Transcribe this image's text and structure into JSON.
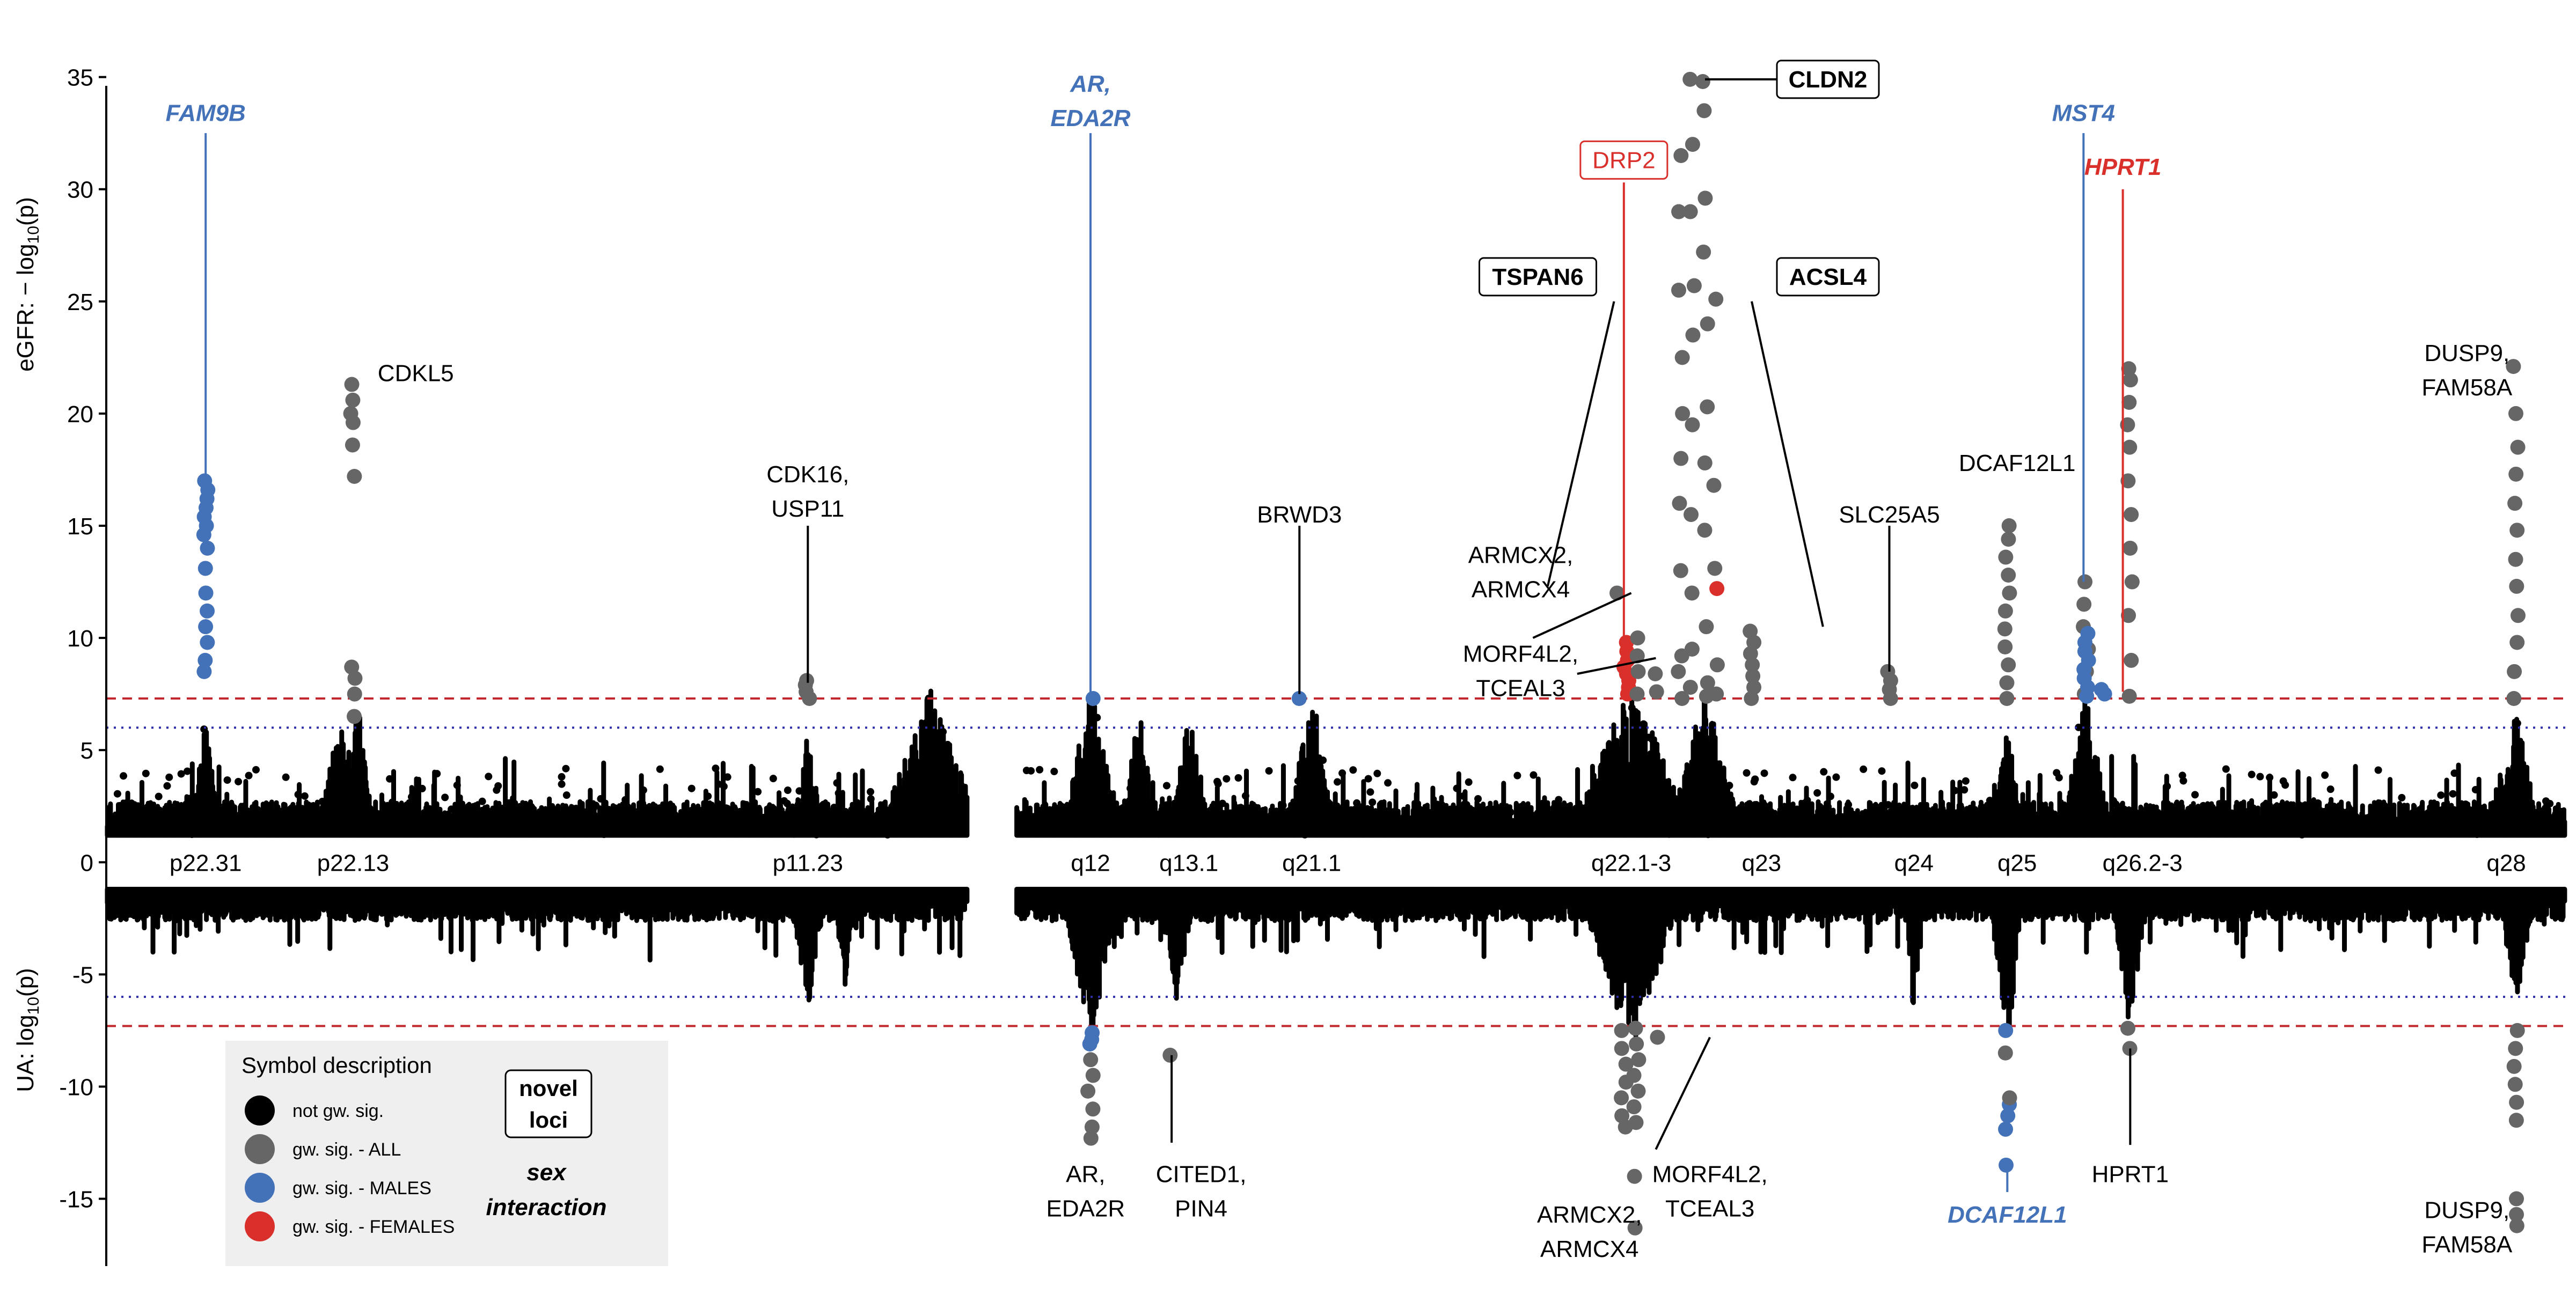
{
  "chart_data": {
    "type": "scatter",
    "title": "",
    "ylabel_top": {
      "prefix": "eGFR: − log",
      "sub": "10",
      "suffix": "(p)"
    },
    "ylabel_bottom": {
      "prefix": "UA: log",
      "sub": "10",
      "suffix": "(p)"
    },
    "ylim": [
      -18,
      37
    ],
    "yticks": [
      -15,
      -10,
      -5,
      0,
      5,
      10,
      15,
      20,
      25,
      30,
      35
    ],
    "xlim": [
      0,
      1000
    ],
    "thresholds": {
      "genome_wide": 7.3,
      "suggestive": 6.0,
      "gw_color": "#c0282d",
      "sug_color": "#2f2fa8"
    },
    "colors": {
      "not_sig": "#000000",
      "all": "#666666",
      "males": "#4472b8",
      "females": "#d9302c"
    },
    "cytobands": [
      {
        "label": "p22.31",
        "x": 40
      },
      {
        "label": "p22.13",
        "x": 100
      },
      {
        "label": "p11.23",
        "x": 285
      },
      {
        "label": "q12",
        "x": 400
      },
      {
        "label": "q13.1",
        "x": 440
      },
      {
        "label": "q21.1",
        "x": 490
      },
      {
        "label": "q22.1-3",
        "x": 620
      },
      {
        "label": "q23",
        "x": 673
      },
      {
        "label": "q24",
        "x": 735
      },
      {
        "label": "q25",
        "x": 777
      },
      {
        "label": "q26.2-3",
        "x": 828
      },
      {
        "label": "q28",
        "x": 976
      }
    ],
    "peaks": [
      {
        "x": 40,
        "side": "top",
        "class": "males",
        "ys": [
          8.5,
          9.0,
          9.8,
          10.5,
          11.2,
          12.0,
          13.1,
          14.0,
          14.6,
          15.0,
          15.4,
          15.8,
          16.2,
          16.6,
          17.0
        ]
      },
      {
        "x": 100,
        "side": "top",
        "class": "all",
        "ys": [
          6.5,
          7.5,
          8.2,
          8.7,
          17.2,
          18.6,
          19.6,
          20.0,
          20.6,
          21.3
        ]
      },
      {
        "x": 285,
        "side": "top",
        "class": "all",
        "ys": [
          7.3,
          7.6,
          7.9,
          8.1
        ]
      },
      {
        "x": 400,
        "side": "top",
        "class": "males",
        "ys": [
          7.3
        ]
      },
      {
        "x": 485,
        "side": "top",
        "class": "males",
        "ys": [
          7.3
        ]
      },
      {
        "x": 615,
        "side": "top",
        "class": "all",
        "ys": [
          12.0
        ]
      },
      {
        "x": 618,
        "side": "top",
        "class": "females",
        "ys": [
          7.5,
          7.8,
          8.1,
          8.4,
          8.7,
          9.0,
          9.4,
          9.8
        ]
      },
      {
        "x": 622,
        "side": "top",
        "class": "all",
        "ys": [
          7.5,
          8.5,
          9.2,
          10.0
        ]
      },
      {
        "x": 630,
        "side": "top",
        "class": "all",
        "ys": [
          7.6,
          8.4
        ]
      },
      {
        "x": 640,
        "side": "top",
        "class": "all",
        "ys": [
          7.3,
          8.5,
          9.2,
          13.0,
          16.0,
          18.0,
          20.0,
          22.5,
          25.5,
          29.0,
          31.5
        ]
      },
      {
        "x": 645,
        "side": "top",
        "class": "all",
        "ys": [
          7.8,
          9.5,
          12.0,
          15.5,
          19.5,
          23.5,
          25.7,
          29.0,
          32.0,
          34.9
        ]
      },
      {
        "x": 650,
        "side": "top",
        "class": "all",
        "ys": [
          7.4,
          8.0,
          10.5,
          14.8,
          17.8,
          20.3,
          24.0,
          27.2,
          29.6,
          33.5,
          34.8
        ]
      },
      {
        "x": 654,
        "side": "top",
        "class": "all",
        "ys": [
          7.5,
          8.8,
          13.1,
          16.8,
          25.1
        ]
      },
      {
        "x": 654,
        "side": "top",
        "class": "females",
        "ys": [
          12.2
        ]
      },
      {
        "x": 669,
        "side": "top",
        "class": "all",
        "ys": [
          7.3,
          7.8,
          8.3,
          8.8,
          9.3,
          9.8,
          10.3
        ]
      },
      {
        "x": 725,
        "side": "top",
        "class": "all",
        "ys": [
          7.3,
          7.7,
          8.1,
          8.5
        ]
      },
      {
        "x": 773,
        "side": "top",
        "class": "all",
        "ys": [
          7.3,
          8.0,
          8.8,
          9.6,
          10.4,
          11.2,
          12.0,
          12.8,
          13.6,
          14.4,
          15.0
        ]
      },
      {
        "x": 805,
        "side": "top",
        "class": "all",
        "ys": [
          7.5,
          8.5,
          9.5,
          10.5,
          11.5,
          12.5
        ]
      },
      {
        "x": 805,
        "side": "top",
        "class": "males",
        "ys": [
          7.4,
          7.8,
          8.2,
          8.6,
          9.0,
          9.4,
          9.8,
          10.2
        ]
      },
      {
        "x": 812,
        "side": "top",
        "class": "males",
        "ys": [
          7.5,
          7.7
        ]
      },
      {
        "x": 823,
        "side": "top",
        "class": "all",
        "ys": [
          7.4,
          9.0,
          11.0,
          12.5,
          14.0,
          15.5,
          17.0,
          18.5,
          19.5,
          20.5,
          21.5,
          22.0
        ]
      },
      {
        "x": 980,
        "side": "top",
        "class": "all",
        "ys": [
          7.3,
          8.5,
          9.8,
          11.0,
          12.3,
          13.5,
          14.8,
          16.0,
          17.3,
          18.5,
          20.0,
          22.1
        ]
      },
      {
        "x": 400,
        "side": "bottom",
        "class": "males",
        "ys": [
          7.6,
          7.9,
          8.1
        ]
      },
      {
        "x": 400,
        "side": "bottom",
        "class": "all",
        "ys": [
          8.8,
          9.5,
          10.2,
          11.0,
          11.8,
          12.3
        ]
      },
      {
        "x": 433,
        "side": "bottom",
        "class": "all",
        "ys": [
          8.6
        ]
      },
      {
        "x": 617,
        "side": "bottom",
        "class": "all",
        "ys": [
          7.5,
          8.3,
          9.0,
          9.8,
          10.5,
          11.3,
          11.8
        ]
      },
      {
        "x": 622,
        "side": "bottom",
        "class": "all",
        "ys": [
          7.4,
          8.1,
          8.8,
          9.5,
          10.2,
          10.9,
          11.6,
          14.0,
          16.3
        ]
      },
      {
        "x": 630,
        "side": "bottom",
        "class": "all",
        "ys": [
          7.8
        ]
      },
      {
        "x": 773,
        "side": "bottom",
        "class": "males",
        "ys": [
          7.5,
          10.8,
          11.3,
          11.9,
          13.5
        ]
      },
      {
        "x": 773,
        "side": "bottom",
        "class": "all",
        "ys": [
          8.5,
          10.5
        ]
      },
      {
        "x": 823,
        "side": "bottom",
        "class": "all",
        "ys": [
          7.4,
          8.3
        ]
      },
      {
        "x": 980,
        "side": "bottom",
        "class": "all",
        "ys": [
          7.5,
          8.3,
          9.1,
          9.9,
          10.7,
          11.5,
          15.0,
          15.7,
          16.2
        ]
      }
    ],
    "background": {
      "segments": [
        {
          "x0": 0,
          "x1": 350
        },
        {
          "x0": 370,
          "x1": 1000
        }
      ],
      "top_bumps": [
        {
          "x": 40,
          "w": 6,
          "h": 5.5
        },
        {
          "x": 95,
          "w": 10,
          "h": 5.5
        },
        {
          "x": 102,
          "w": 6,
          "h": 6.0
        },
        {
          "x": 285,
          "w": 6,
          "h": 5.0
        },
        {
          "x": 335,
          "w": 22,
          "h": 6.5
        },
        {
          "x": 400,
          "w": 12,
          "h": 6.8
        },
        {
          "x": 420,
          "w": 8,
          "h": 5.8
        },
        {
          "x": 440,
          "w": 8,
          "h": 6.0
        },
        {
          "x": 490,
          "w": 10,
          "h": 6.8
        },
        {
          "x": 620,
          "w": 25,
          "h": 7.0
        },
        {
          "x": 650,
          "w": 15,
          "h": 6.5
        },
        {
          "x": 773,
          "w": 6,
          "h": 5.5
        },
        {
          "x": 805,
          "w": 10,
          "h": 6.5
        },
        {
          "x": 980,
          "w": 10,
          "h": 5.5
        }
      ],
      "bottom_bumps": [
        {
          "x": 285,
          "w": 8,
          "h": 5.5
        },
        {
          "x": 300,
          "w": 6,
          "h": 4.5
        },
        {
          "x": 400,
          "w": 12,
          "h": 7.0
        },
        {
          "x": 435,
          "w": 8,
          "h": 5.0
        },
        {
          "x": 620,
          "w": 22,
          "h": 7.2
        },
        {
          "x": 735,
          "w": 4,
          "h": 5.8
        },
        {
          "x": 773,
          "w": 8,
          "h": 7.0
        },
        {
          "x": 823,
          "w": 8,
          "h": 6.5
        },
        {
          "x": 980,
          "w": 8,
          "h": 5.5
        }
      ]
    },
    "annotations": [
      {
        "lines": [
          "FAM9B"
        ],
        "x": 40,
        "y": 33.4,
        "lx": 40,
        "ly0": 17.0,
        "ly1": 32.5,
        "style": "males-italic"
      },
      {
        "lines": [
          "AR,",
          "EDA2R"
        ],
        "x": 400,
        "y": 34.7,
        "lx": 400,
        "ly0": 7.5,
        "ly1": 32.5,
        "style": "males-italic"
      },
      {
        "lines": [
          "MST4"
        ],
        "x": 804,
        "y": 33.4,
        "lx": 804,
        "ly0": 12.5,
        "ly1": 32.5,
        "style": "males-italic"
      },
      {
        "lines": [
          "HPRT1"
        ],
        "x": 820,
        "y": 31.0,
        "lx": 820,
        "ly0": 7.6,
        "ly1": 30.0,
        "style": "females-italic"
      },
      {
        "lines": [
          "DRP2"
        ],
        "x": 617,
        "y": 31.3,
        "lx": 617,
        "ly0": 9.8,
        "ly1": 30.3,
        "style": "females-boxed"
      },
      {
        "lines": [
          "CLDN2"
        ],
        "x": 700,
        "y": 34.9,
        "lx": 650,
        "ly0": 34.9,
        "lx1": 679,
        "ly1": 34.9,
        "style": "novel-boxed"
      },
      {
        "lines": [
          "TSPAN6"
        ],
        "x": 582,
        "y": 26.1,
        "lx": 586,
        "ly0": 25.0,
        "lx1": 613,
        "ly1": 12.3,
        "style": "novel-boxed"
      },
      {
        "lines": [
          "ACSL4"
        ],
        "x": 700,
        "y": 26.1,
        "lx": 698,
        "ly0": 25.0,
        "lx1": 669,
        "ly1": 10.5,
        "style": "novel-boxed"
      },
      {
        "lines": [
          "CDKL5"
        ],
        "x": 110,
        "y": 21.8,
        "style": "plain",
        "anchor": "start"
      },
      {
        "lines": [
          "CDK16,",
          "USP11"
        ],
        "x": 285,
        "y": 17.3,
        "lx": 285,
        "ly0": 8.0,
        "ly1": 15.0,
        "style": "plain"
      },
      {
        "lines": [
          "BRWD3"
        ],
        "x": 485,
        "y": 15.5,
        "lx": 485,
        "ly0": 7.5,
        "ly1": 15.0,
        "style": "plain"
      },
      {
        "lines": [
          "ARMCX2,",
          "ARMCX4"
        ],
        "x": 575,
        "y": 13.7,
        "lx": 580,
        "ly0": 12.0,
        "lx1": 620,
        "ly1": 10.0,
        "style": "plain"
      },
      {
        "lines": [
          "MORF4L2,",
          "TCEAL3"
        ],
        "x": 575,
        "y": 9.3,
        "lx": 598,
        "ly0": 9.1,
        "lx1": 630,
        "ly1": 8.4,
        "style": "plain"
      },
      {
        "lines": [
          "SLC25A5"
        ],
        "x": 725,
        "y": 15.5,
        "lx": 725,
        "ly0": 8.5,
        "ly1": 15.0,
        "style": "plain"
      },
      {
        "lines": [
          "DCAF12L1"
        ],
        "x": 777,
        "y": 17.8,
        "style": "plain"
      },
      {
        "lines": [
          "DUSP9,",
          "FAM58A"
        ],
        "x": 960,
        "y": 22.7,
        "style": "plain"
      },
      {
        "lines": [
          "AR,",
          "EDA2R"
        ],
        "x": 398,
        "y": -13.9,
        "style": "plain"
      },
      {
        "lines": [
          "CITED1,",
          "PIN4"
        ],
        "x": 445,
        "y": -13.9,
        "lx": 433,
        "ly0": -8.6,
        "ly1": -12.5,
        "style": "plain"
      },
      {
        "lines": [
          "MORF4L2,",
          "TCEAL3"
        ],
        "x": 652,
        "y": -13.9,
        "lx": 652,
        "ly0": -12.8,
        "lx1": 630,
        "ly1": -7.8,
        "style": "plain"
      },
      {
        "lines": [
          "ARMCX2,",
          "ARMCX4"
        ],
        "x": 603,
        "y": -15.7,
        "style": "plain"
      },
      {
        "lines": [
          "DCAF12L1"
        ],
        "x": 773,
        "y": -15.7,
        "lx": 773,
        "ly0": -13.5,
        "ly1": -14.7,
        "style": "males-italic"
      },
      {
        "lines": [
          "HPRT1"
        ],
        "x": 823,
        "y": -13.9,
        "lx": 823,
        "ly0": -8.3,
        "ly1": -12.6,
        "style": "plain"
      },
      {
        "lines": [
          "DUSP9,",
          "FAM58A"
        ],
        "x": 960,
        "y": -15.5,
        "style": "plain"
      }
    ]
  },
  "legend": {
    "title": "Symbol description",
    "items": [
      {
        "label": "not gw. sig.",
        "color": "#000000"
      },
      {
        "label": "gw. sig. - ALL",
        "color": "#666666"
      },
      {
        "label": "gw. sig. - MALES",
        "color": "#4472b8"
      },
      {
        "label": "gw. sig. - FEMALES",
        "color": "#d9302c"
      }
    ],
    "novel_line1": "novel",
    "novel_line2": "loci",
    "sex_line1": "sex",
    "sex_line2": "interaction"
  }
}
